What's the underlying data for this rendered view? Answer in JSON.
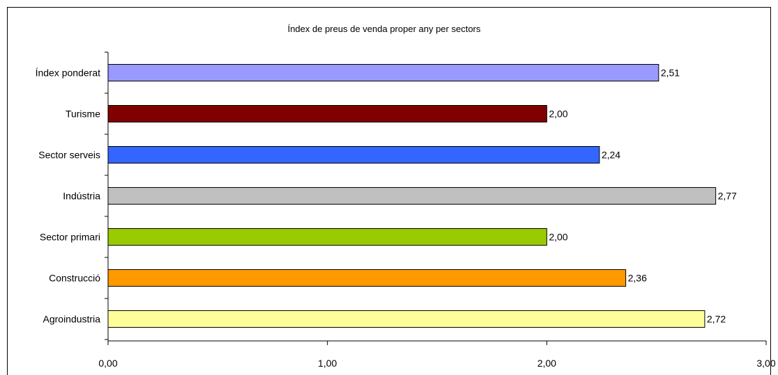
{
  "chart_data": {
    "type": "bar",
    "orientation": "horizontal",
    "title": "Índex de preus de venda proper any per sectors",
    "xlabel": "",
    "ylabel": "",
    "categories": [
      "Índex ponderat",
      "Turisme",
      "Sector serveis",
      "Indústria",
      "Sector primari",
      "Construcció",
      "Agroindustria"
    ],
    "values": [
      2.51,
      2.0,
      2.24,
      2.77,
      2.0,
      2.36,
      2.72
    ],
    "value_labels": [
      "2,51",
      "2,00",
      "2,24",
      "2,77",
      "2,00",
      "2,36",
      "2,72"
    ],
    "colors": [
      "#9999FF",
      "#800000",
      "#3366FF",
      "#C0C0C0",
      "#99CC00",
      "#FF9900",
      "#FFFF99"
    ],
    "xlim": [
      0,
      3
    ],
    "x_ticks": [
      0,
      1,
      2,
      3
    ],
    "x_tick_labels": [
      "0,00",
      "1,00",
      "2,00",
      "3,00"
    ],
    "grid": false,
    "legend": "none"
  }
}
